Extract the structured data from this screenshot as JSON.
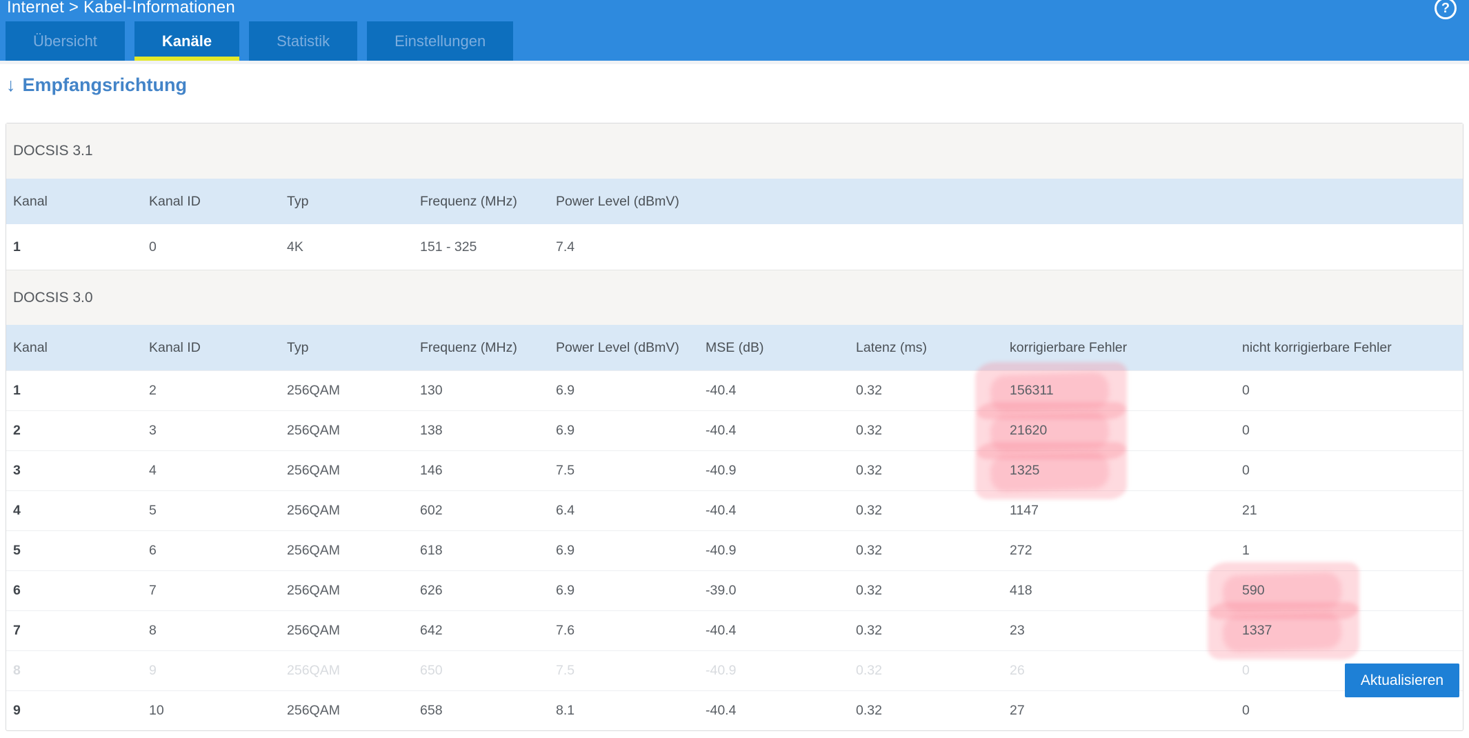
{
  "header": {
    "breadcrumb": "Internet > Kabel-Informationen",
    "help_icon": "?",
    "tabs": [
      {
        "label": "Übersicht",
        "active": false
      },
      {
        "label": "Kanäle",
        "active": true
      },
      {
        "label": "Statistik",
        "active": false
      },
      {
        "label": "Einstellungen",
        "active": false
      }
    ]
  },
  "section": {
    "arrow": "↓",
    "title": "Empfangsrichtung"
  },
  "docsis31": {
    "title": "DOCSIS 3.1",
    "columns": [
      "Kanal",
      "Kanal ID",
      "Typ",
      "Frequenz (MHz)",
      "Power Level (dBmV)"
    ],
    "rows": [
      {
        "cells": [
          "1",
          "0",
          "4K",
          "151 - 325",
          "7.4"
        ],
        "faded": false,
        "highlight": []
      }
    ]
  },
  "docsis30": {
    "title": "DOCSIS 3.0",
    "columns": [
      "Kanal",
      "Kanal ID",
      "Typ",
      "Frequenz (MHz)",
      "Power Level (dBmV)",
      "MSE (dB)",
      "Latenz (ms)",
      "korrigierbare Fehler",
      "nicht korrigierbare Fehler"
    ],
    "rows": [
      {
        "cells": [
          "1",
          "2",
          "256QAM",
          "130",
          "6.9",
          "-40.4",
          "0.32",
          "156311",
          "0"
        ],
        "faded": false,
        "highlight": [
          7
        ]
      },
      {
        "cells": [
          "2",
          "3",
          "256QAM",
          "138",
          "6.9",
          "-40.4",
          "0.32",
          "21620",
          "0"
        ],
        "faded": false,
        "highlight": [
          7
        ]
      },
      {
        "cells": [
          "3",
          "4",
          "256QAM",
          "146",
          "7.5",
          "-40.9",
          "0.32",
          "1325",
          "0"
        ],
        "faded": false,
        "highlight": [
          7
        ]
      },
      {
        "cells": [
          "4",
          "5",
          "256QAM",
          "602",
          "6.4",
          "-40.4",
          "0.32",
          "1147",
          "21"
        ],
        "faded": false,
        "highlight": []
      },
      {
        "cells": [
          "5",
          "6",
          "256QAM",
          "618",
          "6.9",
          "-40.9",
          "0.32",
          "272",
          "1"
        ],
        "faded": false,
        "highlight": []
      },
      {
        "cells": [
          "6",
          "7",
          "256QAM",
          "626",
          "6.9",
          "-39.0",
          "0.32",
          "418",
          "590"
        ],
        "faded": false,
        "highlight": [
          8
        ]
      },
      {
        "cells": [
          "7",
          "8",
          "256QAM",
          "642",
          "7.6",
          "-40.4",
          "0.32",
          "23",
          "1337"
        ],
        "faded": false,
        "highlight": [
          8
        ]
      },
      {
        "cells": [
          "8",
          "9",
          "256QAM",
          "650",
          "7.5",
          "-40.9",
          "0.32",
          "26",
          "0"
        ],
        "faded": true,
        "highlight": []
      },
      {
        "cells": [
          "9",
          "10",
          "256QAM",
          "658",
          "8.1",
          "-40.4",
          "0.32",
          "27",
          "0"
        ],
        "faded": false,
        "highlight": []
      }
    ]
  },
  "button": {
    "label": "Aktualisieren"
  },
  "colors": {
    "topbar_bg": "#2e8ade",
    "tab_bg": "#0d6fbe",
    "active_underline": "#e3e829",
    "header_row_bg": "#d9e8f6",
    "band_bg": "#f6f5f3",
    "button_bg": "#1e80d6",
    "link_blue": "#4384c8",
    "highlight_pink": "#fc8596"
  }
}
